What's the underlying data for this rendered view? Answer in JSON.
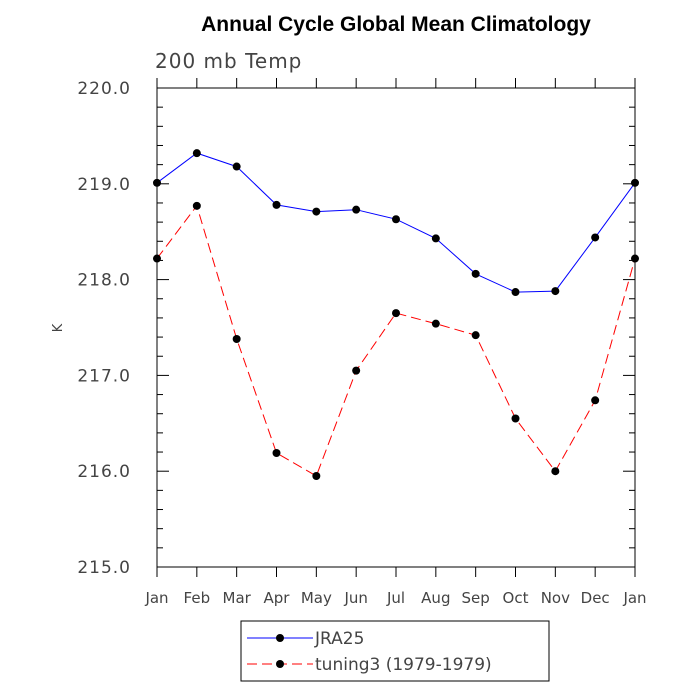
{
  "chart_data": {
    "type": "line",
    "title": "Annual Cycle Global Mean Climatology",
    "subtitle": "200 mb Temp",
    "xlabel": "",
    "ylabel": "K",
    "categories": [
      "Jan",
      "Feb",
      "Mar",
      "Apr",
      "May",
      "Jun",
      "Jul",
      "Aug",
      "Sep",
      "Oct",
      "Nov",
      "Dec",
      "Jan"
    ],
    "ylim": [
      215.0,
      220.0
    ],
    "yticks": [
      "215.0",
      "216.0",
      "217.0",
      "218.0",
      "219.0",
      "220.0"
    ],
    "grid": false,
    "legend_position": "bottom",
    "series": [
      {
        "name": "JRA25",
        "color": "#0000ff",
        "style": "solid",
        "values": [
          219.01,
          219.32,
          219.18,
          218.78,
          218.71,
          218.73,
          218.63,
          218.43,
          218.06,
          217.87,
          217.88,
          218.44,
          219.01
        ]
      },
      {
        "name": "tuning3 (1979-1979)",
        "color": "#ff0000",
        "style": "dashed",
        "values": [
          218.22,
          218.77,
          217.38,
          216.19,
          215.95,
          217.05,
          217.65,
          217.54,
          217.42,
          216.55,
          216.0,
          216.74,
          218.22
        ]
      }
    ]
  }
}
